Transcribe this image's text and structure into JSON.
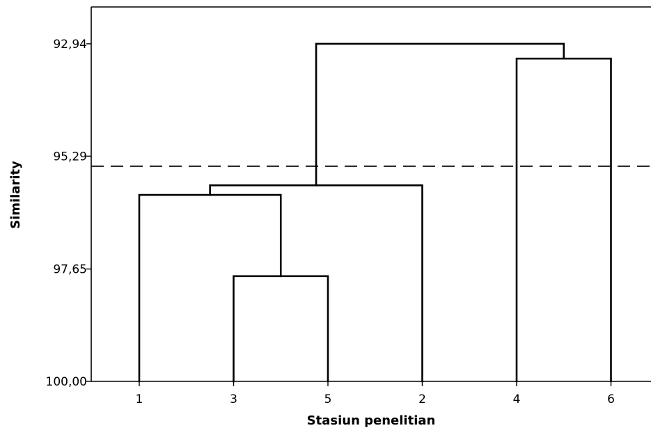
{
  "chart_data": {
    "type": "dendrogram",
    "xlabel": "Stasiun penelitian",
    "ylabel": "Similarity",
    "yticks": [
      "92,94",
      "95,29",
      "97,65",
      "100,00"
    ],
    "y_tick_values": [
      92.94,
      95.29,
      97.65,
      100.0
    ],
    "ylim": [
      92.17,
      100.0
    ],
    "y_inverted": true,
    "leaves": [
      "1",
      "3",
      "5",
      "2",
      "4",
      "6"
    ],
    "merges": [
      {
        "left": "3",
        "right": "5",
        "similarity": 97.8
      },
      {
        "left": "1",
        "right": "3-5",
        "similarity": 96.1
      },
      {
        "left": "1-3-5",
        "right": "2",
        "similarity": 95.9
      },
      {
        "left": "4",
        "right": "6",
        "similarity": 93.25
      },
      {
        "left": "1-3-5-2",
        "right": "4-6",
        "similarity": 92.94
      }
    ],
    "cut_line_similarity": 95.5,
    "grid": false,
    "legend": "none"
  }
}
